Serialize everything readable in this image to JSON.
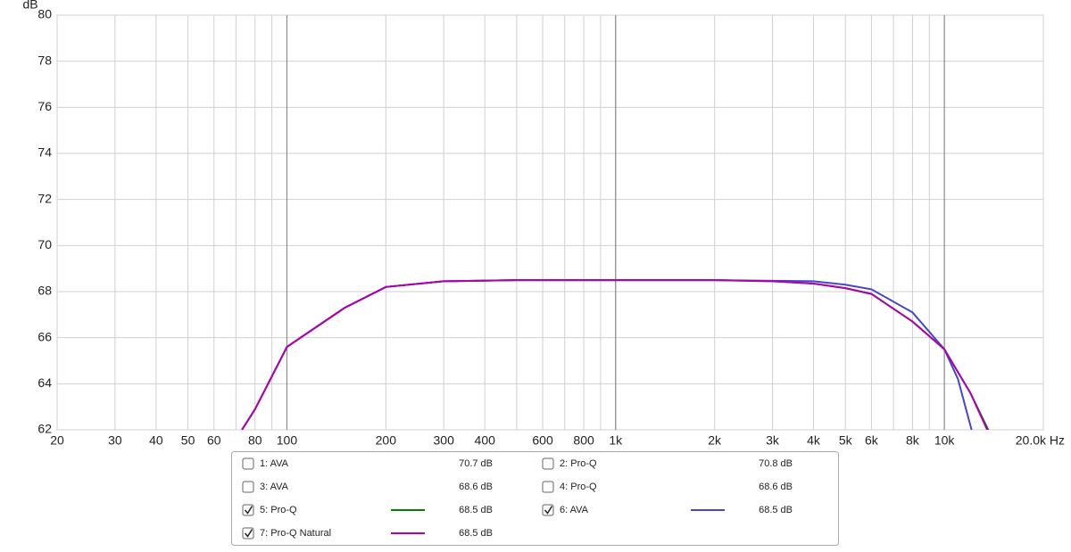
{
  "chart_data": {
    "type": "line",
    "y_label": "dB",
    "x_log": true,
    "xlim": [
      20,
      20000
    ],
    "ylim": [
      62,
      80
    ],
    "xticks": [
      20,
      30,
      40,
      50,
      60,
      {
        "value": 70,
        "label": null
      },
      80,
      {
        "value": 90,
        "label": null
      },
      100,
      200,
      300,
      400,
      {
        "value": 500,
        "label": null
      },
      600,
      {
        "value": 700,
        "label": null
      },
      800,
      {
        "value": 900,
        "label": null
      },
      {
        "value": 1000,
        "label": "1k"
      },
      {
        "value": 2000,
        "label": "2k"
      },
      {
        "value": 3000,
        "label": "3k"
      },
      {
        "value": 4000,
        "label": "4k"
      },
      {
        "value": 5000,
        "label": "5k"
      },
      {
        "value": 6000,
        "label": "6k"
      },
      {
        "value": 7000,
        "label": null
      },
      {
        "value": 8000,
        "label": "8k"
      },
      {
        "value": 9000,
        "label": null
      },
      {
        "value": 10000,
        "label": "10k"
      },
      {
        "value": 20000,
        "label": "20.0k Hz"
      }
    ],
    "major_xgrid": [
      100,
      1000,
      10000
    ],
    "yticks": [
      62,
      64,
      66,
      68,
      70,
      72,
      74,
      76,
      78,
      80
    ],
    "grid": true,
    "series": [
      {
        "name": "1: AVA",
        "color": "#b000b0",
        "checked": false,
        "level": 70.7,
        "level_label": "70.7 dB"
      },
      {
        "name": "2: Pro-Q",
        "color": "#008080",
        "checked": false,
        "level": 70.8,
        "level_label": "70.8 dB"
      },
      {
        "name": "3: AVA",
        "color": "#b08000",
        "checked": false,
        "level": 68.6,
        "level_label": "68.6 dB"
      },
      {
        "name": "4: Pro-Q",
        "color": "#a00000",
        "checked": false,
        "level": 68.6,
        "level_label": "68.6 dB"
      },
      {
        "name": "5: Pro-Q",
        "color": "#008000",
        "checked": true,
        "level": 68.5,
        "level_label": "68.5 dB",
        "x": [
          73,
          80,
          100,
          150,
          200,
          300,
          500,
          1000,
          2000,
          3000,
          4000,
          5000,
          6000,
          8000,
          10000,
          12000,
          13600
        ],
        "values": [
          62,
          62.9,
          65.6,
          67.3,
          68.2,
          68.45,
          68.5,
          68.5,
          68.5,
          68.45,
          68.35,
          68.15,
          67.9,
          66.7,
          65.5,
          63.6,
          62
        ]
      },
      {
        "name": "6: AVA",
        "color": "#4646c8",
        "checked": true,
        "level": 68.5,
        "level_label": "68.5 dB",
        "x": [
          73,
          80,
          100,
          150,
          200,
          300,
          500,
          1000,
          2000,
          3000,
          4000,
          5000,
          6000,
          8000,
          10000,
          11000,
          12100
        ],
        "values": [
          62,
          62.9,
          65.6,
          67.3,
          68.2,
          68.45,
          68.5,
          68.5,
          68.5,
          68.47,
          68.45,
          68.3,
          68.1,
          67.1,
          65.5,
          64.2,
          62
        ]
      },
      {
        "name": "7: Pro-Q Natural",
        "color": "#b000b0",
        "checked": true,
        "level": 68.5,
        "level_label": "68.5 dB",
        "x": [
          73,
          80,
          100,
          150,
          200,
          300,
          500,
          1000,
          2000,
          3000,
          4000,
          5000,
          6000,
          8000,
          10000,
          12000,
          13500
        ],
        "values": [
          62,
          62.9,
          65.6,
          67.3,
          68.2,
          68.45,
          68.5,
          68.5,
          68.5,
          68.45,
          68.35,
          68.15,
          67.9,
          66.7,
          65.5,
          63.6,
          62
        ]
      }
    ]
  }
}
